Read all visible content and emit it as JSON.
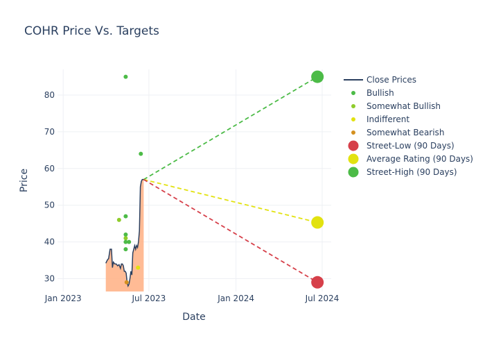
{
  "chart_data": {
    "type": "scatter",
    "title": "COHR Price Vs. Targets",
    "xlabel": "Date",
    "ylabel": "Price",
    "x_range": [
      "2022-12-20",
      "2024-07-20"
    ],
    "y_range": [
      26.5,
      87
    ],
    "x_ticks": [
      {
        "date": "2023-01-01",
        "label": "Jan 2023"
      },
      {
        "date": "2023-07-01",
        "label": "Jul 2023"
      },
      {
        "date": "2024-01-01",
        "label": "Jan 2024"
      },
      {
        "date": "2024-07-01",
        "label": "Jul 2024"
      }
    ],
    "y_ticks": [
      30,
      40,
      50,
      60,
      70,
      80
    ],
    "grid": true,
    "legend_position": "right",
    "colors": {
      "close": "#2a3f5f",
      "area_fill": "#ffb48a",
      "bullish": "#4cbb47",
      "somewhat_bullish": "#8fcc2c",
      "indifferent": "#e2e210",
      "somewhat_bearish": "#d4901f",
      "low": "#d6404a",
      "avg": "#e2e210",
      "high": "#4cbb47"
    },
    "close_prices": [
      [
        "2023-04-01",
        34.2
      ],
      [
        "2023-04-04",
        35.0
      ],
      [
        "2023-04-07",
        35.5
      ],
      [
        "2023-04-10",
        38.0
      ],
      [
        "2023-04-13",
        38.0
      ],
      [
        "2023-04-15",
        33.0
      ],
      [
        "2023-04-17",
        34.5
      ],
      [
        "2023-04-20",
        34.0
      ],
      [
        "2023-04-23",
        34.0
      ],
      [
        "2023-04-26",
        33.5
      ],
      [
        "2023-04-29",
        33.8
      ],
      [
        "2023-05-02",
        32.8
      ],
      [
        "2023-05-04",
        34.0
      ],
      [
        "2023-05-06",
        34.0
      ],
      [
        "2023-05-08",
        33.5
      ],
      [
        "2023-05-10",
        32.0
      ],
      [
        "2023-05-12",
        32.0
      ],
      [
        "2023-05-14",
        31.5
      ],
      [
        "2023-05-16",
        29.0
      ],
      [
        "2023-05-18",
        28.0
      ],
      [
        "2023-05-20",
        28.5
      ],
      [
        "2023-05-22",
        30.0
      ],
      [
        "2023-05-24",
        32.0
      ],
      [
        "2023-05-26",
        31.0
      ],
      [
        "2023-05-28",
        37.0
      ],
      [
        "2023-05-30",
        38.0
      ],
      [
        "2023-06-01",
        39.0
      ],
      [
        "2023-06-03",
        38.0
      ],
      [
        "2023-06-05",
        39.0
      ],
      [
        "2023-06-07",
        38.5
      ],
      [
        "2023-06-09",
        40.0
      ],
      [
        "2023-06-11",
        43.0
      ],
      [
        "2023-06-13",
        55.0
      ],
      [
        "2023-06-15",
        56.5
      ],
      [
        "2023-06-17",
        57.0
      ],
      [
        "2023-06-20",
        57.0
      ]
    ],
    "ratings": [
      {
        "date": "2023-04-29",
        "price": 46,
        "category": "somewhat_bullish"
      },
      {
        "date": "2023-05-13",
        "price": 85,
        "category": "bullish"
      },
      {
        "date": "2023-05-13",
        "price": 47,
        "category": "bullish"
      },
      {
        "date": "2023-05-13",
        "price": 42,
        "category": "bullish"
      },
      {
        "date": "2023-05-13",
        "price": 41,
        "category": "somewhat_bullish"
      },
      {
        "date": "2023-05-13",
        "price": 40,
        "category": "bullish"
      },
      {
        "date": "2023-05-13",
        "price": 38,
        "category": "bullish"
      },
      {
        "date": "2023-05-20",
        "price": 40,
        "category": "bullish"
      },
      {
        "date": "2023-05-15",
        "price": 29,
        "category": "somewhat_bearish"
      },
      {
        "date": "2023-06-08",
        "price": 33,
        "category": "indifferent"
      },
      {
        "date": "2023-06-14",
        "price": 64,
        "category": "bullish"
      }
    ],
    "projections": {
      "start": {
        "date": "2023-06-20",
        "price": 57
      },
      "end_date": "2024-06-21",
      "street_low": 29,
      "average": 45.3,
      "street_high": 85
    },
    "legend": [
      {
        "key": "close",
        "label": "Close Prices",
        "marker": "line"
      },
      {
        "key": "bullish",
        "label": "Bullish",
        "marker": "dot"
      },
      {
        "key": "somewhat_bullish",
        "label": "Somewhat Bullish",
        "marker": "dot"
      },
      {
        "key": "indifferent",
        "label": "Indifferent",
        "marker": "dot"
      },
      {
        "key": "somewhat_bearish",
        "label": "Somewhat Bearish",
        "marker": "dot"
      },
      {
        "key": "low",
        "label": "Street-Low (90 Days)",
        "marker": "big"
      },
      {
        "key": "avg",
        "label": "Average Rating (90 Days)",
        "marker": "big"
      },
      {
        "key": "high",
        "label": "Street-High (90 Days)",
        "marker": "big"
      }
    ]
  }
}
